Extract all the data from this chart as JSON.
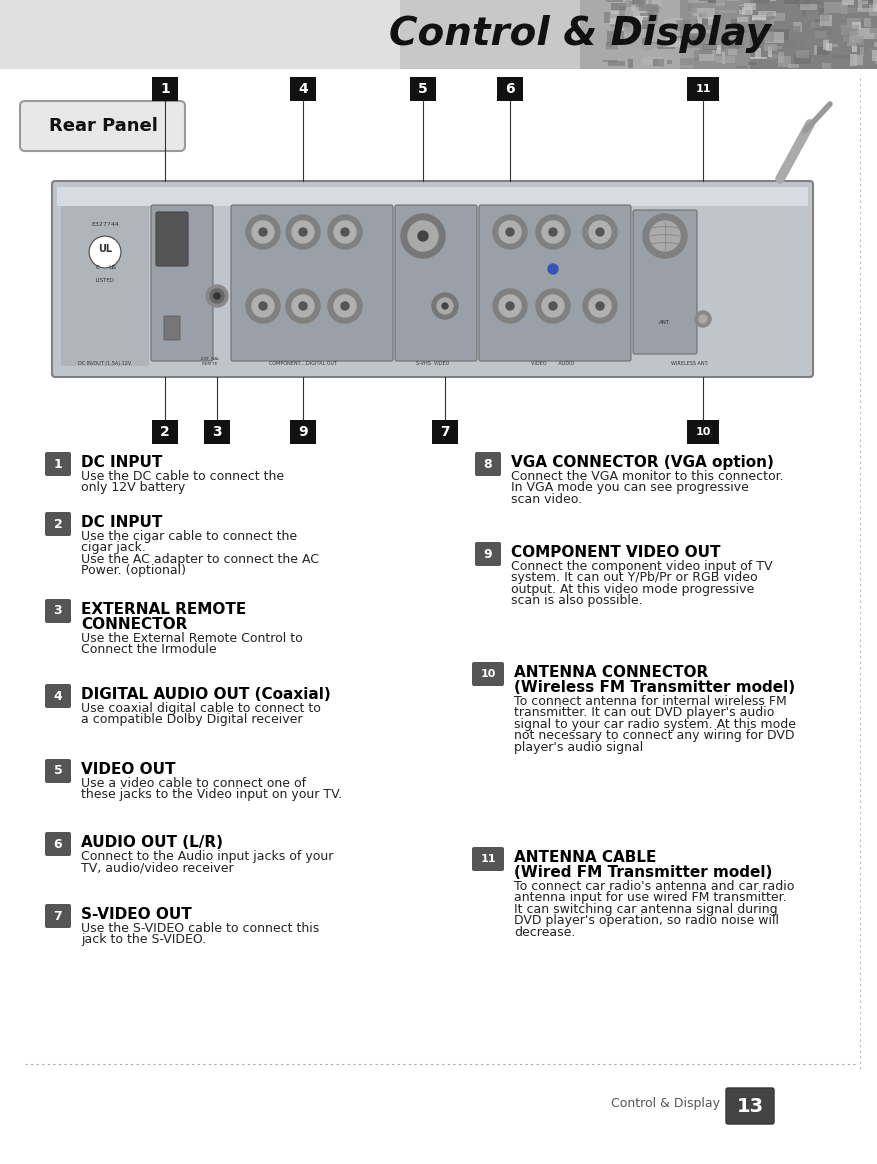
{
  "title": "Control & Display",
  "section_label": "Rear Panel",
  "page_number": "13",
  "page_label": "Control & Display",
  "bg_color": "#ffffff",
  "dotted_line_color": "#aaaaaa",
  "items_left": [
    {
      "num": "1",
      "title": "DC INPUT",
      "title2": "",
      "desc": "Use the DC cable to connect the\nonly 12V battery"
    },
    {
      "num": "2",
      "title": "DC INPUT",
      "title2": "",
      "desc": "Use the cigar cable to connect the\ncigar jack.\nUse the AC adapter to connect the AC\nPower. (optional)"
    },
    {
      "num": "3",
      "title": "EXTERNAL REMOTE",
      "title2": "CONNECTOR",
      "desc": "Use the External Remote Control to\nConnect the Irmodule"
    },
    {
      "num": "4",
      "title": "DIGITAL AUDIO OUT (Coaxial)",
      "title2": "",
      "desc": "Use coaxial digital cable to connect to\na compatible Dolby Digital receiver"
    },
    {
      "num": "5",
      "title": "VIDEO OUT",
      "title2": "",
      "desc": "Use a video cable to connect one of\nthese jacks to the Video input on your TV."
    },
    {
      "num": "6",
      "title": "AUDIO OUT (L/R)",
      "title2": "",
      "desc": "Connect to the Audio input jacks of your\nTV, audio/video receiver"
    },
    {
      "num": "7",
      "title": "S-VIDEO OUT",
      "title2": "",
      "desc": "Use the S-VIDEO cable to connect this\njack to the S-VIDEO."
    }
  ],
  "items_right": [
    {
      "num": "8",
      "title": "VGA CONNECTOR (VGA option)",
      "title2": "",
      "desc": "Connect the VGA monitor to this connector.\nIn VGA mode you can see progressive\nscan video."
    },
    {
      "num": "9",
      "title": "COMPONENT VIDEO OUT",
      "title2": "",
      "desc": "Connect the component video input of TV\nsystem. It can out Y/Pb/Pr or RGB video\noutput. At this video mode progressive\nscan is also possible."
    },
    {
      "num": "10",
      "title": "ANTENNA CONNECTOR",
      "title2": "(Wireless FM Transmitter model)",
      "desc": "To connect antenna for internal wireless FM\ntransmitter. It can out DVD player's audio\nsignal to your car radio system. At this mode\nnot necessary to connect any wiring for DVD\nplayer's audio signal"
    },
    {
      "num": "11",
      "title": "ANTENNA CABLE",
      "title2": "(Wired FM Transmitter model)",
      "desc": "To connect car radio's antenna and car radio\nantenna input for use wired FM transmitter.\nIt can switching car antenna signal during\nDVD player's operation, so radio noise will\ndecrease."
    }
  ],
  "num_badge_color": "#555555",
  "num_badge_text_color": "#ffffff",
  "title_color": "#000000",
  "desc_color": "#222222",
  "panel_badge_color": "#111111",
  "panel_badge_text_color": "#ffffff"
}
